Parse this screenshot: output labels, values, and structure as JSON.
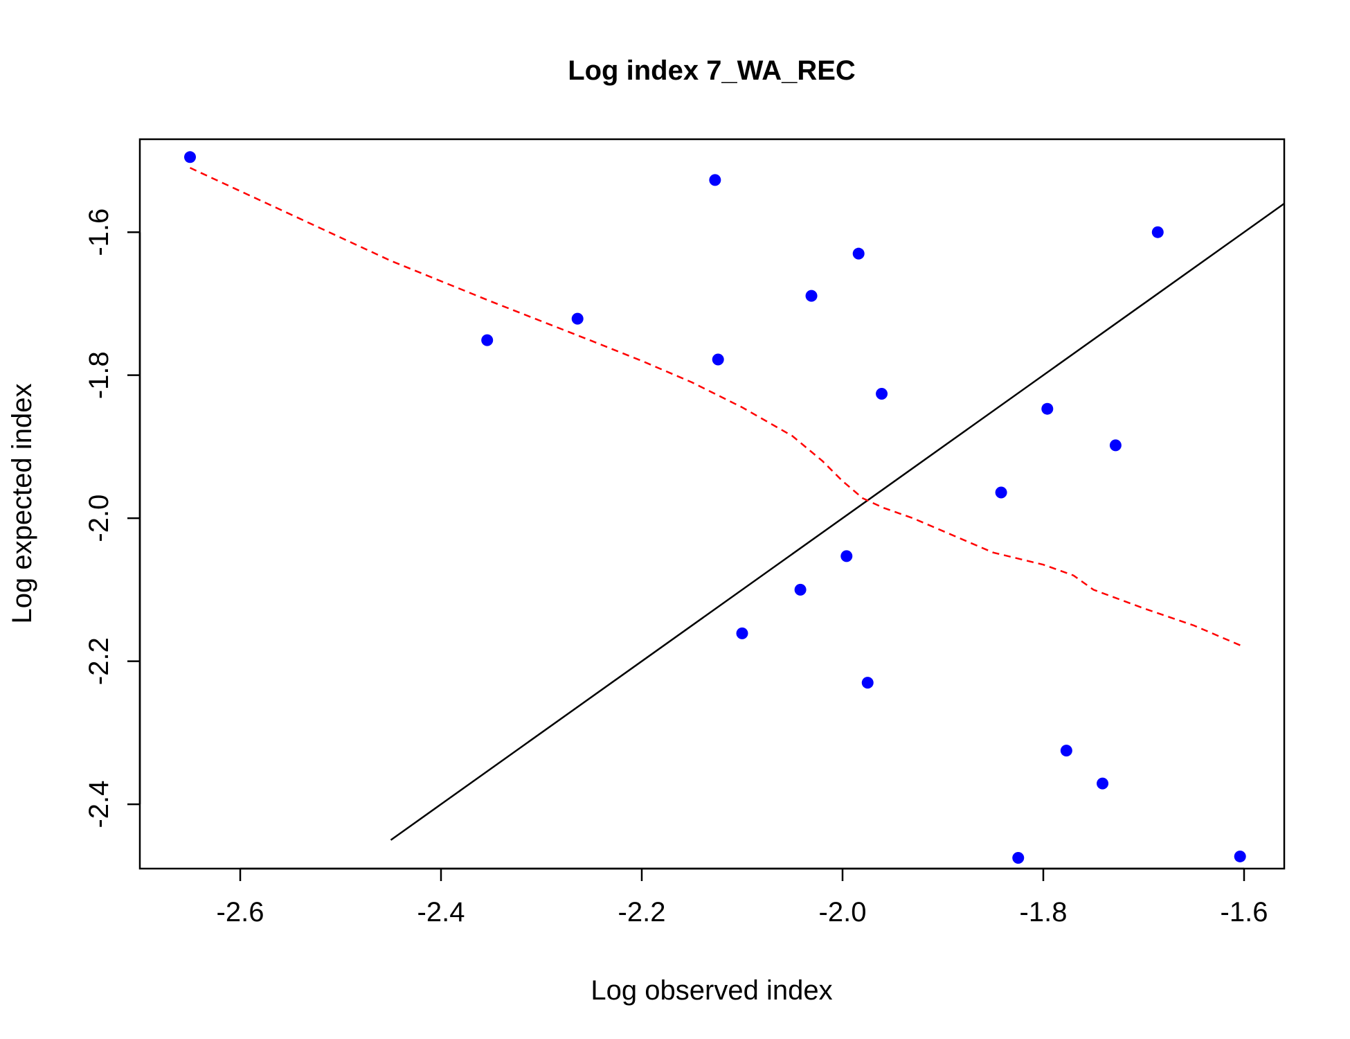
{
  "chart_data": {
    "type": "scatter",
    "title": "Log index 7_WA_REC",
    "xlabel": "Log observed index",
    "ylabel": "Log expected index",
    "xlim": [
      -2.7,
      -1.56
    ],
    "ylim": [
      -2.49,
      -1.47
    ],
    "xticks": [
      -2.6,
      -2.4,
      -2.2,
      -2.0,
      -1.8,
      -1.6
    ],
    "xtick_labels": [
      "-2.6",
      "-2.4",
      "-2.2",
      "-2.0",
      "-1.8",
      "-1.6"
    ],
    "yticks": [
      -2.4,
      -2.2,
      -2.0,
      -1.8,
      -1.6
    ],
    "ytick_labels": [
      "-2.4",
      "-2.2",
      "-2.0",
      "-1.8",
      "-1.6"
    ],
    "grid": false,
    "points": {
      "color": "#0000ff",
      "x": [
        -2.65,
        -2.354,
        -2.264,
        -2.127,
        -2.124,
        -2.1,
        -2.042,
        -2.031,
        -1.996,
        -1.984,
        -1.975,
        -1.961,
        -1.842,
        -1.825,
        -1.796,
        -1.777,
        -1.741,
        -1.728,
        -1.686,
        -1.604
      ],
      "y": [
        -1.495,
        -1.751,
        -1.721,
        -1.527,
        -1.778,
        -2.161,
        -2.1,
        -1.689,
        -2.053,
        -1.63,
        -2.23,
        -1.826,
        -1.964,
        -2.475,
        -1.847,
        -2.325,
        -2.371,
        -1.898,
        -1.6,
        -2.473
      ]
    },
    "reference_line": {
      "style": "solid",
      "color": "#000000",
      "x": [
        -2.45,
        -1.56
      ],
      "y": [
        -2.45,
        -1.56
      ]
    },
    "smooth_line": {
      "style": "dashed",
      "color": "#ff0000",
      "x": [
        -2.65,
        -2.55,
        -2.45,
        -2.35,
        -2.25,
        -2.2,
        -2.15,
        -2.1,
        -2.05,
        -2.02,
        -2.0,
        -1.98,
        -1.96,
        -1.93,
        -1.9,
        -1.85,
        -1.8,
        -1.77,
        -1.75,
        -1.7,
        -1.65,
        -1.6
      ],
      "y": [
        -1.51,
        -1.575,
        -1.64,
        -1.697,
        -1.752,
        -1.78,
        -1.81,
        -1.845,
        -1.885,
        -1.92,
        -1.948,
        -1.972,
        -1.985,
        -2.0,
        -2.018,
        -2.048,
        -2.065,
        -2.08,
        -2.1,
        -2.126,
        -2.15,
        -2.18
      ]
    }
  }
}
